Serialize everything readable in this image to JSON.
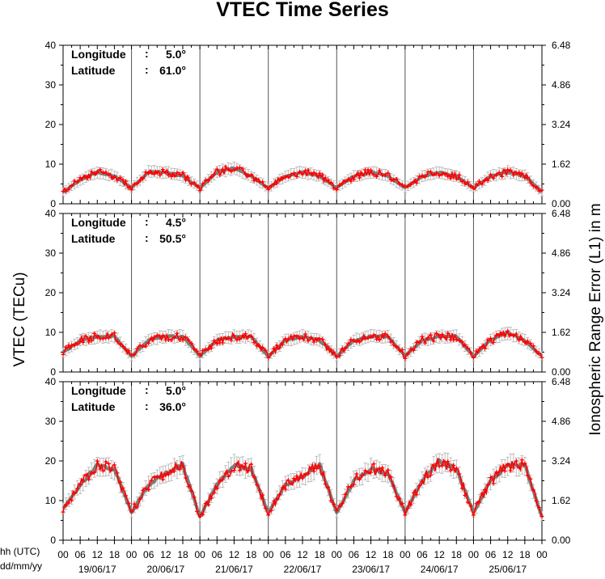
{
  "title": "VTEC Time Series",
  "y_label_left": "VTEC (TECu)",
  "y_label_right": "Ionospheric Range Error (L1) in m",
  "x_label_hours": "hh (UTC)",
  "x_label_dates": "dd/mm/yy",
  "colors": {
    "observed": "#ff0000",
    "model": "#707070",
    "error_bar": "#b0b0b0",
    "axis": "#000000",
    "day_line": "#555555"
  },
  "chart_data": {
    "type": "line",
    "days": [
      "19/06/17",
      "20/06/17",
      "21/06/17",
      "22/06/17",
      "23/06/17",
      "24/06/17",
      "25/06/17"
    ],
    "hour_ticks": [
      "00",
      "06",
      "12",
      "18"
    ],
    "hour_tick_final": "00",
    "panels": [
      {
        "lon_label": "Longitude",
        "lon_value": "5.0°",
        "lat_label": "Latitude",
        "lat_value": "61.0°",
        "ylim": [
          0,
          40
        ],
        "y_ticks": [
          "0",
          "10",
          "20",
          "30",
          "40"
        ],
        "y_right_ticks": [
          "0.00",
          "1.62",
          "3.24",
          "4.86",
          "6.48"
        ],
        "series": [
          {
            "hours": [
              0,
              6,
              12,
              18,
              24
            ],
            "values": [
              3,
              6,
              8,
              7,
              4
            ]
          },
          {
            "hours": [
              0,
              6,
              12,
              18,
              24
            ],
            "values": [
              4,
              8,
              8,
              7,
              4
            ]
          },
          {
            "hours": [
              0,
              6,
              12,
              18,
              24
            ],
            "values": [
              4,
              8,
              9,
              7,
              4
            ]
          },
          {
            "hours": [
              0,
              6,
              12,
              18,
              24
            ],
            "values": [
              4,
              7,
              8,
              7,
              4
            ]
          },
          {
            "hours": [
              0,
              6,
              12,
              18,
              24
            ],
            "values": [
              4,
              7,
              8,
              7,
              4
            ]
          },
          {
            "hours": [
              0,
              6,
              12,
              18,
              24
            ],
            "values": [
              4,
              7,
              8,
              7,
              4
            ]
          },
          {
            "hours": [
              0,
              6,
              12,
              18,
              24
            ],
            "values": [
              4,
              7,
              8,
              7,
              3
            ]
          }
        ]
      },
      {
        "lon_label": "Longitude",
        "lon_value": "4.5°",
        "lat_label": "Latitude",
        "lat_value": "50.5°",
        "ylim": [
          0,
          40
        ],
        "y_ticks": [
          "0",
          "10",
          "20",
          "30",
          "40"
        ],
        "y_right_ticks": [
          "0.00",
          "1.62",
          "3.24",
          "4.86",
          "6.48"
        ],
        "series": [
          {
            "hours": [
              0,
              6,
              12,
              18,
              24
            ],
            "values": [
              5,
              8,
              9,
              9,
              4
            ]
          },
          {
            "hours": [
              0,
              6,
              12,
              18,
              24
            ],
            "values": [
              4,
              8,
              9,
              9,
              4
            ]
          },
          {
            "hours": [
              0,
              6,
              12,
              18,
              24
            ],
            "values": [
              4,
              8,
              9,
              9,
              4
            ]
          },
          {
            "hours": [
              0,
              6,
              12,
              18,
              24
            ],
            "values": [
              4,
              8,
              9,
              8,
              4
            ]
          },
          {
            "hours": [
              0,
              6,
              12,
              18,
              24
            ],
            "values": [
              4,
              8,
              9,
              9,
              4
            ]
          },
          {
            "hours": [
              0,
              6,
              12,
              18,
              24
            ],
            "values": [
              4,
              8,
              9,
              9,
              4
            ]
          },
          {
            "hours": [
              0,
              6,
              12,
              18,
              24
            ],
            "values": [
              4,
              8,
              10,
              8,
              4
            ]
          }
        ]
      },
      {
        "lon_label": "Longitude",
        "lon_value": "5.0°",
        "lat_label": "Latitude",
        "lat_value": "36.0°",
        "ylim": [
          0,
          40
        ],
        "y_ticks": [
          "0",
          "10",
          "20",
          "30",
          "40"
        ],
        "y_right_ticks": [
          "0.00",
          "1.62",
          "3.24",
          "4.86",
          "6.48"
        ],
        "series": [
          {
            "hours": [
              0,
              6,
              12,
              18,
              24
            ],
            "values": [
              8,
              14,
              19,
              18,
              7
            ]
          },
          {
            "hours": [
              0,
              6,
              12,
              18,
              24
            ],
            "values": [
              7,
              14,
              17,
              19,
              6
            ]
          },
          {
            "hours": [
              0,
              6,
              12,
              18,
              24
            ],
            "values": [
              6,
              14,
              19,
              18,
              7
            ]
          },
          {
            "hours": [
              0,
              6,
              12,
              18,
              24
            ],
            "values": [
              7,
              14,
              16,
              19,
              7
            ]
          },
          {
            "hours": [
              0,
              6,
              12,
              18,
              24
            ],
            "values": [
              7,
              15,
              18,
              17,
              7
            ]
          },
          {
            "hours": [
              0,
              6,
              12,
              18,
              24
            ],
            "values": [
              7,
              15,
              20,
              18,
              7
            ]
          },
          {
            "hours": [
              0,
              6,
              12,
              18,
              24
            ],
            "values": [
              7,
              15,
              19,
              19,
              6
            ]
          }
        ]
      }
    ]
  }
}
